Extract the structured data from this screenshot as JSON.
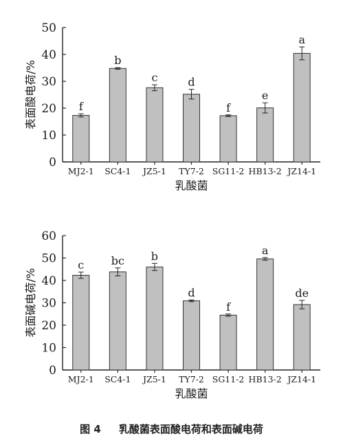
{
  "figure": {
    "caption_number": "图 4",
    "caption_text": "乳酸菌表面酸电荷和表面碱电荷"
  },
  "chart_data": [
    {
      "type": "bar",
      "categories": [
        "MJ2-1",
        "SC4-1",
        "JZ5-1",
        "TY7-2",
        "SG11-2",
        "HB13-2",
        "JZ14-1"
      ],
      "values": [
        17.3,
        34.8,
        27.6,
        25.2,
        17.2,
        20.1,
        40.4
      ],
      "errors": [
        0.6,
        0.3,
        1.1,
        1.8,
        0.3,
        1.9,
        2.4
      ],
      "significance": [
        "f",
        "b",
        "c",
        "d",
        "f",
        "e",
        "a"
      ],
      "xlabel": "乳酸菌",
      "ylabel": "表面酸电荷/%",
      "ylim": [
        0,
        50
      ],
      "yticks": [
        0,
        10,
        20,
        30,
        40,
        50
      ],
      "bar_color": "#c0c0c0",
      "grid": false
    },
    {
      "type": "bar",
      "categories": [
        "MJ2-1",
        "SC4-1",
        "JZ5-1",
        "TY7-2",
        "SG11-2",
        "HB13-2",
        "JZ14-1"
      ],
      "values": [
        42.3,
        43.8,
        46.0,
        30.9,
        24.5,
        49.6,
        29.2
      ],
      "errors": [
        1.4,
        1.8,
        1.6,
        0.4,
        0.5,
        0.6,
        1.9
      ],
      "significance": [
        "c",
        "bc",
        "b",
        "d",
        "f",
        "a",
        "de"
      ],
      "xlabel": "乳酸菌",
      "ylabel": "表面碱电荷/%",
      "ylim": [
        0,
        60
      ],
      "yticks": [
        0,
        10,
        20,
        30,
        40,
        50,
        60
      ],
      "bar_color": "#c0c0c0",
      "grid": false
    }
  ]
}
